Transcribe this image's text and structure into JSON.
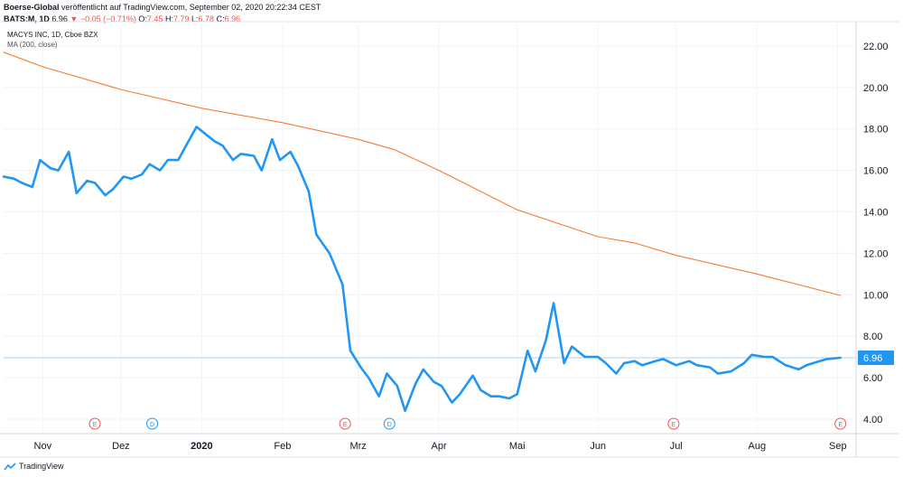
{
  "header": {
    "author": "Boerse-Global",
    "published": "veröffentlicht auf TradingView.com, September 02, 2020 20:22:34 CEST",
    "symbol": "BATS:M, 1D",
    "last": "6.96",
    "change": "−0.05 (−0.71%)",
    "o_label": "O:",
    "o_value": "7.45",
    "h_label": "H:",
    "h_value": "7.79",
    "l_label": "L:",
    "l_value": "6.78",
    "c_label": "C:",
    "c_value": "6.96"
  },
  "legend": {
    "title": "MACYS INC, 1D, Cboe BZX",
    "ma": "MA (200, close)"
  },
  "footer": {
    "brand": "TradingView"
  },
  "colors": {
    "price": "#2196f3",
    "ma": "#f57c34",
    "grid": "#f0f3fa",
    "axis_text": "#131722",
    "earnings": "#ef5350",
    "dividend": "#2196f3",
    "price_badge": "#2196f3"
  },
  "chart_data": {
    "type": "line",
    "title": "MACYS INC, 1D, Cboe BZX",
    "ylim": [
      3.3,
      23.0
    ],
    "y_ticks": [
      "4.00",
      "6.00",
      "8.00",
      "10.00",
      "12.00",
      "14.00",
      "16.00",
      "18.00",
      "20.00",
      "22.00"
    ],
    "x_range": [
      "2019-10-17",
      "2020-09-08"
    ],
    "x_ticks": [
      {
        "label": "Nov",
        "date": "2019-11-01"
      },
      {
        "label": "Dez",
        "date": "2019-12-01"
      },
      {
        "label": "2020",
        "date": "2020-01-01"
      },
      {
        "label": "Feb",
        "date": "2020-02-01"
      },
      {
        "label": "Mrz",
        "date": "2020-03-01"
      },
      {
        "label": "Apr",
        "date": "2020-04-01"
      },
      {
        "label": "Mai",
        "date": "2020-05-01"
      },
      {
        "label": "Jun",
        "date": "2020-06-01"
      },
      {
        "label": "Jul",
        "date": "2020-07-01"
      },
      {
        "label": "Aug",
        "date": "2020-08-01"
      },
      {
        "label": "Sep",
        "date": "2020-09-01"
      }
    ],
    "last_price_label": "6.96",
    "last_price": 6.96,
    "series": [
      {
        "name": "MACYS INC",
        "x": [
          "2019-10-17",
          "2019-10-21",
          "2019-10-24",
          "2019-10-28",
          "2019-10-31",
          "2019-11-04",
          "2019-11-07",
          "2019-11-11",
          "2019-11-14",
          "2019-11-18",
          "2019-11-21",
          "2019-11-25",
          "2019-11-28",
          "2019-12-02",
          "2019-12-05",
          "2019-12-09",
          "2019-12-12",
          "2019-12-16",
          "2019-12-19",
          "2019-12-23",
          "2019-12-26",
          "2019-12-30",
          "2020-01-02",
          "2020-01-06",
          "2020-01-09",
          "2020-01-13",
          "2020-01-16",
          "2020-01-21",
          "2020-01-24",
          "2020-01-28",
          "2020-01-31",
          "2020-02-04",
          "2020-02-07",
          "2020-02-11",
          "2020-02-14",
          "2020-02-19",
          "2020-02-24",
          "2020-02-27",
          "2020-03-02",
          "2020-03-05",
          "2020-03-09",
          "2020-03-12",
          "2020-03-16",
          "2020-03-19",
          "2020-03-23",
          "2020-03-26",
          "2020-03-30",
          "2020-04-02",
          "2020-04-06",
          "2020-04-09",
          "2020-04-14",
          "2020-04-17",
          "2020-04-21",
          "2020-04-24",
          "2020-04-28",
          "2020-05-01",
          "2020-05-05",
          "2020-05-08",
          "2020-05-12",
          "2020-05-15",
          "2020-05-19",
          "2020-05-22",
          "2020-05-27",
          "2020-06-01",
          "2020-06-04",
          "2020-06-08",
          "2020-06-11",
          "2020-06-15",
          "2020-06-18",
          "2020-06-23",
          "2020-06-26",
          "2020-07-01",
          "2020-07-06",
          "2020-07-09",
          "2020-07-14",
          "2020-07-17",
          "2020-07-22",
          "2020-07-27",
          "2020-07-30",
          "2020-08-04",
          "2020-08-07",
          "2020-08-12",
          "2020-08-17",
          "2020-08-20",
          "2020-08-25",
          "2020-08-28",
          "2020-09-02"
        ],
        "values": [
          15.7,
          15.6,
          15.4,
          15.2,
          16.5,
          16.1,
          16.0,
          16.9,
          14.9,
          15.5,
          15.4,
          14.8,
          15.1,
          15.7,
          15.6,
          15.8,
          16.3,
          16.0,
          16.5,
          16.5,
          17.2,
          18.1,
          17.8,
          17.4,
          17.2,
          16.5,
          16.8,
          16.7,
          16.0,
          17.5,
          16.5,
          16.9,
          16.2,
          15.0,
          12.9,
          12.0,
          10.5,
          7.3,
          6.5,
          6.0,
          5.1,
          6.2,
          5.6,
          4.4,
          5.7,
          6.4,
          5.8,
          5.6,
          4.8,
          5.2,
          6.1,
          5.4,
          5.1,
          5.1,
          5.0,
          5.2,
          7.3,
          6.3,
          7.8,
          9.6,
          6.7,
          7.5,
          7.0,
          7.0,
          6.7,
          6.2,
          6.7,
          6.8,
          6.6,
          6.8,
          6.9,
          6.6,
          6.8,
          6.6,
          6.5,
          6.2,
          6.3,
          6.7,
          7.1,
          7.0,
          7.0,
          6.6,
          6.4,
          6.6,
          6.8,
          6.9,
          6.96
        ]
      },
      {
        "name": "MA (200, close)",
        "x": [
          "2019-10-17",
          "2019-11-01",
          "2019-12-01",
          "2020-01-01",
          "2020-02-01",
          "2020-03-01",
          "2020-03-15",
          "2020-04-01",
          "2020-05-01",
          "2020-06-01",
          "2020-06-15",
          "2020-07-01",
          "2020-08-01",
          "2020-09-02"
        ],
        "values": [
          21.7,
          21.0,
          19.9,
          19.0,
          18.3,
          17.5,
          17.0,
          16.0,
          14.1,
          12.8,
          12.5,
          11.9,
          11.0,
          9.97
        ]
      }
    ],
    "events": [
      {
        "type": "E",
        "date": "2019-11-21"
      },
      {
        "type": "D",
        "date": "2019-12-13"
      },
      {
        "type": "E",
        "date": "2020-02-25"
      },
      {
        "type": "D",
        "date": "2020-03-13"
      },
      {
        "type": "E",
        "date": "2020-06-30"
      },
      {
        "type": "E",
        "date": "2020-09-02"
      }
    ]
  }
}
